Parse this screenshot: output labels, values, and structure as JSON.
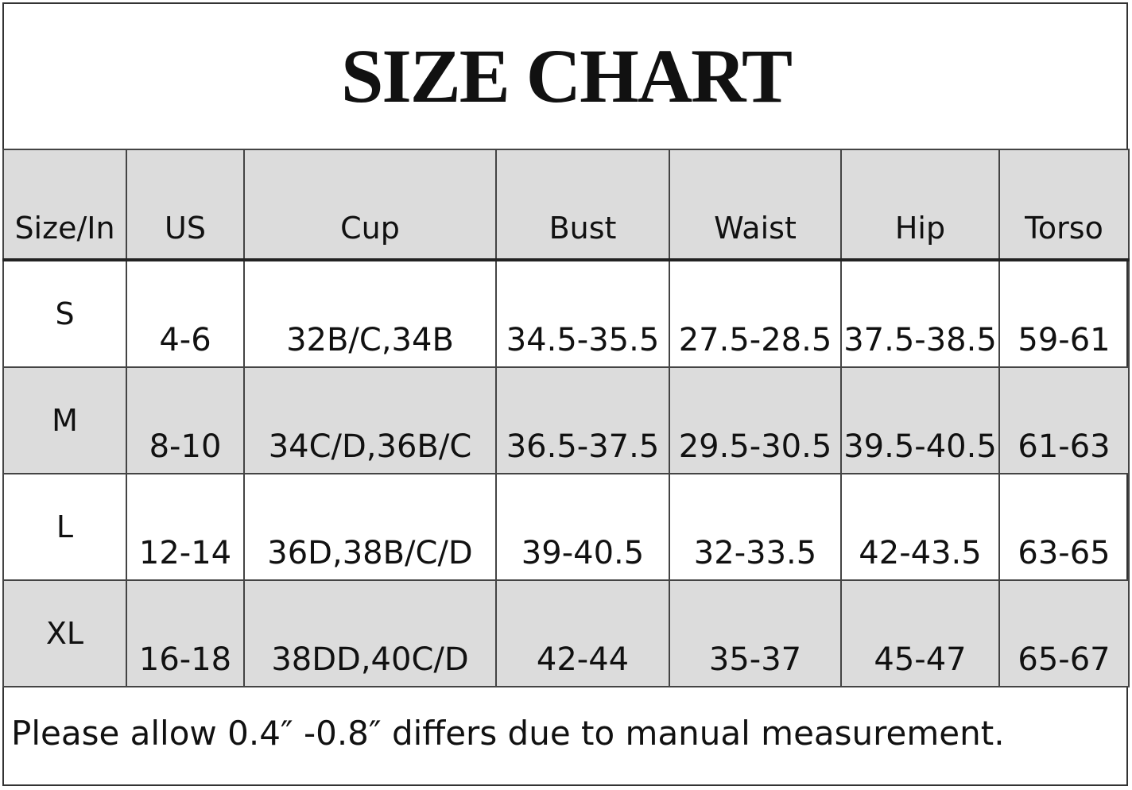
{
  "title": "SIZE CHART",
  "table": {
    "header": [
      "Size/In",
      "US",
      "Cup",
      "Bust",
      "Waist",
      "Hip",
      "Torso"
    ],
    "rows": [
      [
        "S",
        "4-6",
        "32B/C,34B",
        "34.5-35.5",
        "27.5-28.5",
        "37.5-38.5",
        "59-61"
      ],
      [
        "M",
        "8-10",
        "34C/D,36B/C",
        "36.5-37.5",
        "29.5-30.5",
        "39.5-40.5",
        "61-63"
      ],
      [
        "L",
        "12-14",
        "36D,38B/C/D",
        "39-40.5",
        "32-33.5",
        "42-43.5",
        "63-65"
      ],
      [
        "XL",
        "16-18",
        "38DD,40C/D",
        "42-44",
        "35-37",
        "45-47",
        "65-67"
      ]
    ]
  },
  "note": "Please allow 0.4″ -0.8″ differs due to manual measurement."
}
